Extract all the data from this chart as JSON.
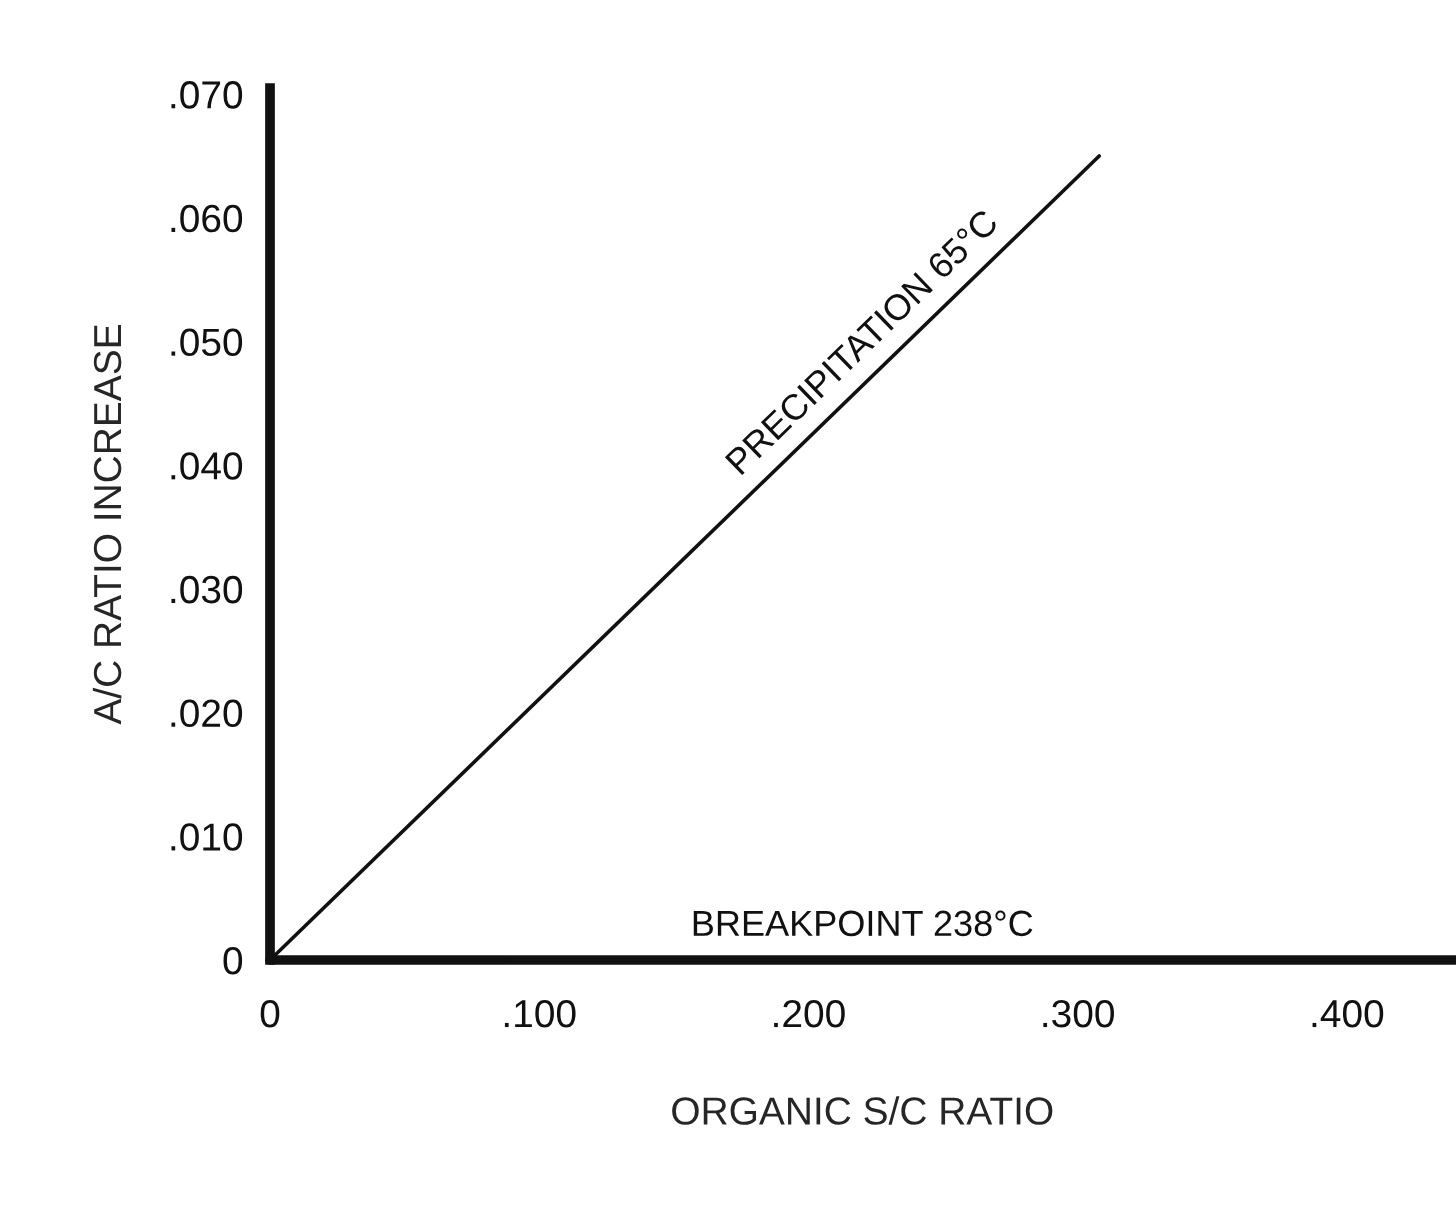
{
  "chart_data": {
    "type": "line",
    "xlabel": "ORGANIC S/C RATIO",
    "ylabel": "A/C RATIO INCREASE",
    "series": [
      {
        "name": "PRECIPITATION 65°C",
        "color": "#111111",
        "x": [
          0,
          0.308
        ],
        "values": [
          0,
          0.065
        ]
      },
      {
        "name": "BREAKPOINT 238°C",
        "color": "#111111",
        "x": [
          0,
          0.44
        ],
        "values": [
          0,
          0
        ]
      }
    ],
    "xlim": [
      0,
      0.44
    ],
    "ylim": [
      0,
      0.0705
    ],
    "xticks": [
      0,
      {
        "value": 0.1,
        "label": ".100"
      },
      {
        "value": 0.2,
        "label": ".200"
      },
      {
        "value": 0.3,
        "label": ".300"
      },
      {
        "value": 0.4,
        "label": ".400"
      }
    ],
    "yticks": [
      0,
      {
        "value": 0.01,
        "label": ".010"
      },
      {
        "value": 0.02,
        "label": ".020"
      },
      {
        "value": 0.03,
        "label": ".030"
      },
      {
        "value": 0.04,
        "label": ".040"
      },
      {
        "value": 0.05,
        "label": ".050"
      },
      {
        "value": 0.06,
        "label": ".060"
      },
      {
        "value": 0.07,
        "label": ".070"
      }
    ],
    "grid": false,
    "legend": false,
    "marker": "none",
    "line_style": "solid"
  }
}
